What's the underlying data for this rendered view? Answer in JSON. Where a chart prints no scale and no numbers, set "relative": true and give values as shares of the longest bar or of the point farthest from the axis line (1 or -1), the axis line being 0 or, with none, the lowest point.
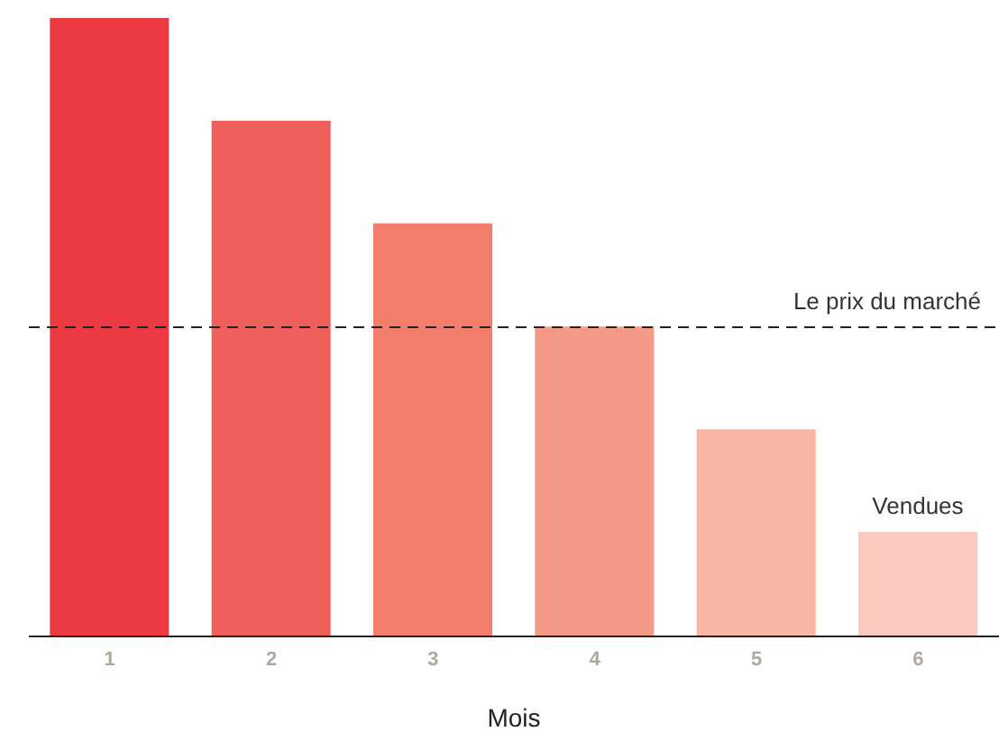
{
  "chart_data": {
    "type": "bar",
    "relative": true,
    "xlabel": "Mois",
    "categories": [
      "1",
      "2",
      "3",
      "4",
      "5",
      "6"
    ],
    "values": [
      1,
      0.834,
      0.668,
      0.501,
      0.335,
      0.169
    ],
    "colors": [
      "#ec3a43",
      "#f0605a",
      "#f27f6e",
      "#f59a86",
      "#f8b5a3",
      "#f9cabd"
    ],
    "ref_lines": [
      {
        "axis": "y",
        "value": 0.5,
        "label": "Le prix du marché",
        "color": "#222222",
        "line_style": "dashed"
      }
    ],
    "annotations": [
      {
        "text": "Vendues",
        "x": "6",
        "y": 0.169
      }
    ],
    "grid": false,
    "legend": false
  }
}
